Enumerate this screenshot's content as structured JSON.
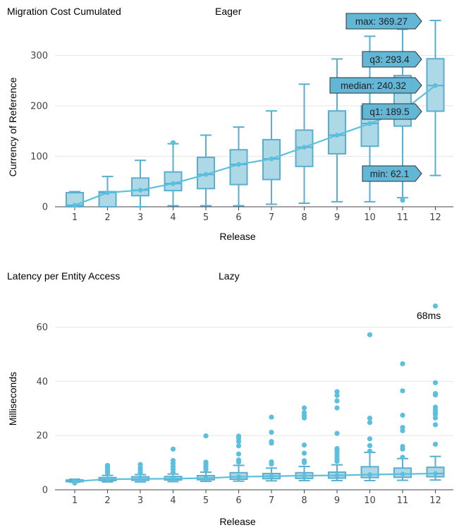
{
  "colors": {
    "series": "#5bc0de",
    "box_fill": "#add8e6",
    "box_stroke": "#5aaed0",
    "tooltip_fill": "#62b6d6"
  },
  "chart_data": [
    {
      "type": "box",
      "title": "Migration Cost Cumulated",
      "subtitle": "Eager",
      "xlabel": "Release",
      "ylabel": "Currency of Reference",
      "ylim": [
        0,
        370
      ],
      "yticks": [
        0,
        100,
        200,
        300
      ],
      "categories": [
        "1",
        "2",
        "3",
        "4",
        "5",
        "6",
        "7",
        "8",
        "9",
        "10",
        "11",
        "12"
      ],
      "boxes": [
        {
          "x": "1",
          "min": 0,
          "q1": 0,
          "median": 3,
          "q3": 28,
          "max": 30,
          "mean": 3,
          "outliers": []
        },
        {
          "x": "2",
          "min": 0,
          "q1": 0,
          "median": 28,
          "q3": 30,
          "max": 60,
          "mean": 28,
          "outliers": []
        },
        {
          "x": "3",
          "min": 0,
          "q1": 22,
          "median": 33,
          "q3": 57,
          "max": 92,
          "mean": 33,
          "outliers": []
        },
        {
          "x": "4",
          "min": 2,
          "q1": 32,
          "median": 46,
          "q3": 69,
          "max": 125,
          "mean": 46,
          "outliers": [
            127
          ]
        },
        {
          "x": "5",
          "min": 2,
          "q1": 36,
          "median": 64,
          "q3": 98,
          "max": 142,
          "mean": 64,
          "outliers": []
        },
        {
          "x": "6",
          "min": 2,
          "q1": 44,
          "median": 84,
          "q3": 113,
          "max": 158,
          "mean": 84,
          "outliers": []
        },
        {
          "x": "7",
          "min": 5,
          "q1": 54,
          "median": 95,
          "q3": 133,
          "max": 190,
          "mean": 95,
          "outliers": []
        },
        {
          "x": "8",
          "min": 7,
          "q1": 80,
          "median": 118,
          "q3": 152,
          "max": 243,
          "mean": 118,
          "outliers": []
        },
        {
          "x": "9",
          "min": 10,
          "q1": 105,
          "median": 142,
          "q3": 190,
          "max": 293,
          "mean": 142,
          "outliers": []
        },
        {
          "x": "10",
          "min": 10,
          "q1": 120,
          "median": 165,
          "q3": 200,
          "max": 338,
          "mean": 165,
          "outliers": []
        },
        {
          "x": "11",
          "min": 18,
          "q1": 160,
          "median": 190,
          "q3": 260,
          "max": 352,
          "mean": 190,
          "outliers": [
            13
          ]
        },
        {
          "x": "12",
          "min": 62.1,
          "q1": 189.5,
          "median": 240.32,
          "q3": 293.4,
          "max": 369.27,
          "mean": 240.32,
          "outliers": []
        }
      ],
      "tooltip": [
        {
          "label": "max",
          "value": "369.27",
          "text": "max: 369.27"
        },
        {
          "label": "q3",
          "value": "293.4",
          "text": "q3: 293.4"
        },
        {
          "label": "median",
          "value": "240.32",
          "text": "median: 240.32"
        },
        {
          "label": "q1",
          "value": "189.5",
          "text": "q1: 189.5"
        },
        {
          "label": "min",
          "value": "62.1",
          "text": "min: 62.1"
        }
      ]
    },
    {
      "type": "box",
      "title": "Latency per Entity Access",
      "subtitle": "Lazy",
      "xlabel": "Release",
      "ylabel": "Milliseconds",
      "ylim": [
        0,
        69
      ],
      "yticks": [
        0,
        20,
        40,
        60
      ],
      "categories": [
        "1",
        "2",
        "3",
        "4",
        "5",
        "6",
        "7",
        "8",
        "9",
        "10",
        "11",
        "12"
      ],
      "annotation": "68ms",
      "boxes": [
        {
          "x": "1",
          "min": 2.8,
          "q1": 3.0,
          "median": 3.3,
          "q3": 3.6,
          "max": 3.9,
          "mean": 3.1,
          "outliers": [
            2.5
          ]
        },
        {
          "x": "2",
          "min": 2.9,
          "q1": 3.4,
          "median": 3.9,
          "q3": 4.5,
          "max": 5.3,
          "mean": 3.9,
          "outliers": [
            6.2,
            7.0,
            7.8,
            8.5,
            9.0
          ]
        },
        {
          "x": "3",
          "min": 2.9,
          "q1": 3.5,
          "median": 4.0,
          "q3": 4.8,
          "max": 5.6,
          "mean": 4.0,
          "outliers": [
            6.2,
            7.2,
            8.2,
            9.3
          ]
        },
        {
          "x": "4",
          "min": 3.0,
          "q1": 3.6,
          "median": 4.1,
          "q3": 4.9,
          "max": 5.8,
          "mean": 4.1,
          "outliers": [
            6.4,
            7.5,
            8.6,
            9.7,
            10.8,
            15.0
          ]
        },
        {
          "x": "5",
          "min": 3.1,
          "q1": 3.7,
          "median": 4.3,
          "q3": 5.2,
          "max": 6.5,
          "mean": 4.3,
          "outliers": [
            7.5,
            8.5,
            9.4,
            10.2,
            19.9
          ]
        },
        {
          "x": "6",
          "min": 3.2,
          "q1": 3.9,
          "median": 4.8,
          "q3": 6.3,
          "max": 9.0,
          "mean": 4.8,
          "outliers": [
            10.2,
            11.0,
            13.2,
            16.2,
            17.8,
            19.0,
            19.8
          ]
        },
        {
          "x": "7",
          "min": 3.3,
          "q1": 4.1,
          "median": 5.0,
          "q3": 6.0,
          "max": 8.0,
          "mean": 5.0,
          "outliers": [
            9.5,
            10.3,
            17.2,
            17.8,
            21.2,
            26.8
          ]
        },
        {
          "x": "8",
          "min": 3.4,
          "q1": 4.2,
          "median": 5.2,
          "q3": 6.3,
          "max": 8.6,
          "mean": 5.2,
          "outliers": [
            10.0,
            10.7,
            13.5,
            16.5,
            26.5,
            27.5,
            28.5,
            30.2
          ]
        },
        {
          "x": "9",
          "min": 3.4,
          "q1": 4.3,
          "median": 5.3,
          "q3": 6.5,
          "max": 9.2,
          "mean": 5.3,
          "outliers": [
            10.5,
            11.5,
            12.5,
            13.5,
            14.5,
            15.2,
            20.8,
            30.2,
            32.8,
            34.8,
            36.2
          ]
        },
        {
          "x": "10",
          "min": 3.4,
          "q1": 4.5,
          "median": 5.6,
          "q3": 8.5,
          "max": 13.8,
          "mean": 5.6,
          "outliers": [
            14.2,
            16.3,
            18.8,
            24.8,
            26.4,
            57.2
          ]
        },
        {
          "x": "11",
          "min": 3.5,
          "q1": 4.6,
          "median": 5.8,
          "q3": 8.0,
          "max": 11.5,
          "mean": 5.8,
          "outliers": [
            12.0,
            15.0,
            16.0,
            21.8,
            23.0,
            27.5,
            36.5,
            46.5
          ]
        },
        {
          "x": "12",
          "min": 3.6,
          "q1": 4.8,
          "median": 6.0,
          "q3": 8.3,
          "max": 12.3,
          "mean": 6.0,
          "outliers": [
            16.8,
            24.0,
            26.5,
            27.8,
            28.5,
            29.4,
            30.5,
            35.0,
            35.5,
            39.5,
            67.8
          ]
        }
      ]
    }
  ]
}
